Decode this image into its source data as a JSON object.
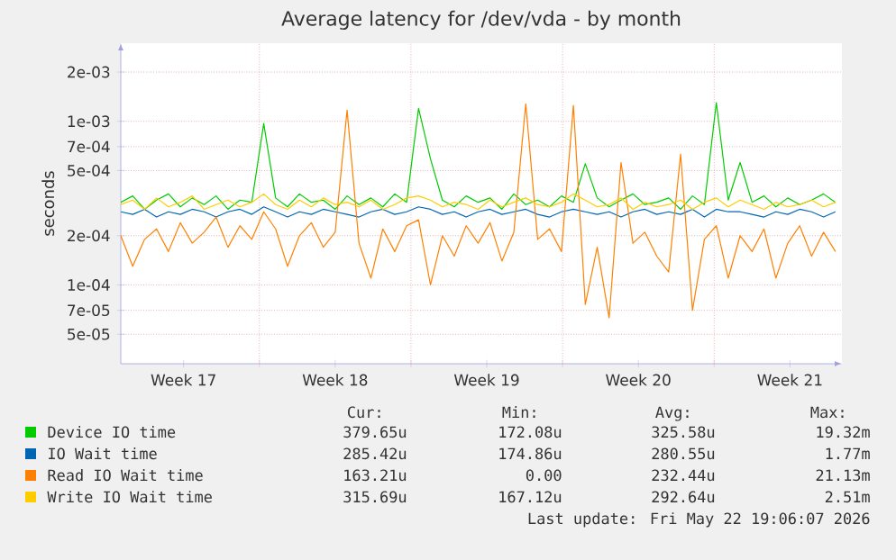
{
  "chart_data": {
    "type": "line",
    "title": "Average latency for /dev/vda - by month",
    "ylabel": "seconds",
    "log": "y",
    "grid": true,
    "legend": "bottom",
    "xlim": [
      "2026-04-20T14:24",
      "2026-05-23T21:36"
    ],
    "ylim": [
      3.3e-05,
      0.003
    ],
    "xticks": [
      {
        "value": "2026-04-23T12:00",
        "label": "Week 17"
      },
      {
        "value": "2026-04-30T12:00",
        "label": "Week 18"
      },
      {
        "value": "2026-05-07T12:00",
        "label": "Week 19"
      },
      {
        "value": "2026-05-14T12:00",
        "label": "Week 20"
      },
      {
        "value": "2026-05-21T12:00",
        "label": "Week 21"
      },
      {
        "value": "2026-04-27",
        "label": null
      },
      {
        "value": "2026-05-04",
        "label": null
      },
      {
        "value": "2026-05-11",
        "label": null
      },
      {
        "value": "2026-05-18",
        "label": null
      }
    ],
    "yticks": [
      {
        "value": 5e-05,
        "label": "5e-05"
      },
      {
        "value": 7e-05,
        "label": "7e-05"
      },
      {
        "value": 0.0001,
        "label": "1e-04"
      },
      {
        "value": 0.0002,
        "label": "2e-04"
      },
      {
        "value": 0.0005,
        "label": "5e-04"
      },
      {
        "value": 0.0007,
        "label": "7e-04"
      },
      {
        "value": 0.001,
        "label": "1e-03"
      },
      {
        "value": 0.002,
        "label": "2e-03"
      }
    ],
    "x": [
      "2026-04-20T14:24",
      "2026-04-21T03:36",
      "2026-04-21T16:48",
      "2026-04-22T06:00",
      "2026-04-22T19:12",
      "2026-04-23T08:24",
      "2026-04-23T21:36",
      "2026-04-24T10:48",
      "2026-04-25T00:00",
      "2026-04-25T13:12",
      "2026-04-26T02:24",
      "2026-04-26T15:36",
      "2026-04-27T04:48",
      "2026-04-27T18:00",
      "2026-04-28T07:12",
      "2026-04-28T20:24",
      "2026-04-29T09:36",
      "2026-04-29T22:48",
      "2026-04-30T12:00",
      "2026-05-01T01:12",
      "2026-05-01T14:24",
      "2026-05-02T03:36",
      "2026-05-02T16:48",
      "2026-05-03T06:00",
      "2026-05-03T19:12",
      "2026-05-04T08:24",
      "2026-05-04T21:36",
      "2026-05-05T10:48",
      "2026-05-06T00:00",
      "2026-05-06T13:12",
      "2026-05-07T02:24",
      "2026-05-07T15:36",
      "2026-05-08T04:48",
      "2026-05-08T18:00",
      "2026-05-09T07:12",
      "2026-05-09T20:24",
      "2026-05-10T09:36",
      "2026-05-10T22:48",
      "2026-05-11T12:00",
      "2026-05-12T01:12",
      "2026-05-12T14:24",
      "2026-05-13T03:36",
      "2026-05-13T16:48",
      "2026-05-14T06:00",
      "2026-05-14T19:12",
      "2026-05-15T08:24",
      "2026-05-15T21:36",
      "2026-05-16T10:48",
      "2026-05-17T00:00",
      "2026-05-17T13:12",
      "2026-05-18T02:24",
      "2026-05-18T15:36",
      "2026-05-19T04:48",
      "2026-05-19T18:00",
      "2026-05-20T07:12",
      "2026-05-20T20:24",
      "2026-05-21T09:36",
      "2026-05-21T22:48",
      "2026-05-22T12:00",
      "2026-05-23T01:12",
      "2026-05-23T14:24"
    ],
    "series": [
      {
        "name": "Device IO time",
        "color": "#00cc00",
        "values": [
          0.00032,
          0.00035,
          0.00029,
          0.00033,
          0.00036,
          0.0003,
          0.00034,
          0.00031,
          0.00035,
          0.00029,
          0.00033,
          0.00032,
          0.00097,
          0.00034,
          0.0003,
          0.00036,
          0.00032,
          0.00033,
          0.00029,
          0.00035,
          0.00031,
          0.00034,
          0.0003,
          0.00036,
          0.00032,
          0.0012,
          0.00059,
          0.00033,
          0.0003,
          0.00035,
          0.00032,
          0.00034,
          0.00029,
          0.00036,
          0.00031,
          0.00033,
          0.0003,
          0.00035,
          0.00032,
          0.00055,
          0.00034,
          0.0003,
          0.00033,
          0.00036,
          0.00031,
          0.00032,
          0.00034,
          0.00029,
          0.00035,
          0.00031,
          0.0013,
          0.00033,
          0.00056,
          0.00032,
          0.00035,
          0.0003,
          0.00034,
          0.00031,
          0.00033,
          0.00036,
          0.00032
        ]
      },
      {
        "name": "IO Wait time",
        "color": "#0066b3",
        "values": [
          0.00028,
          0.00027,
          0.00029,
          0.00026,
          0.00028,
          0.00027,
          0.00029,
          0.00028,
          0.00026,
          0.00028,
          0.00029,
          0.00027,
          0.0003,
          0.00028,
          0.00026,
          0.00028,
          0.00027,
          0.00029,
          0.00028,
          0.00027,
          0.00026,
          0.00028,
          0.00029,
          0.00027,
          0.00028,
          0.0003,
          0.00029,
          0.00027,
          0.00028,
          0.00026,
          0.00028,
          0.00029,
          0.00027,
          0.00028,
          0.00029,
          0.00027,
          0.00026,
          0.00028,
          0.00029,
          0.00028,
          0.00027,
          0.00028,
          0.00026,
          0.00028,
          0.00029,
          0.00027,
          0.00028,
          0.00027,
          0.00029,
          0.00026,
          0.00029,
          0.00028,
          0.00028,
          0.00027,
          0.00026,
          0.00028,
          0.00027,
          0.00029,
          0.00028,
          0.00026,
          0.00028
        ]
      },
      {
        "name": "Read IO Wait time",
        "color": "#ff8000",
        "values": [
          0.0002,
          0.00013,
          0.00019,
          0.00022,
          0.00016,
          0.00024,
          0.00018,
          0.00021,
          0.00026,
          0.00017,
          0.00023,
          0.00019,
          0.00028,
          0.00022,
          0.00013,
          0.0002,
          0.00024,
          0.00017,
          0.00021,
          0.00117,
          0.00018,
          0.00011,
          0.00022,
          0.00016,
          0.00023,
          0.00025,
          0.0001,
          0.0002,
          0.00015,
          0.00023,
          0.00018,
          0.00024,
          0.00014,
          0.00021,
          0.00128,
          0.00019,
          0.00022,
          0.00016,
          0.00125,
          7.6e-05,
          0.00017,
          6.3e-05,
          0.00056,
          0.00018,
          0.00021,
          0.00015,
          0.00012,
          0.00063,
          7e-05,
          0.00019,
          0.00023,
          0.00011,
          0.0002,
          0.00016,
          0.00022,
          0.00011,
          0.00018,
          0.00023,
          0.00015,
          0.00021,
          0.00016
        ]
      },
      {
        "name": "Write IO Wait time",
        "color": "#ffcc00",
        "values": [
          0.00031,
          0.00033,
          0.00029,
          0.00034,
          0.0003,
          0.00032,
          0.00035,
          0.00029,
          0.00031,
          0.00033,
          0.0003,
          0.00032,
          0.00036,
          0.00031,
          0.00029,
          0.00033,
          0.0003,
          0.00034,
          0.00031,
          0.00032,
          0.0003,
          0.00033,
          0.00029,
          0.00031,
          0.00034,
          0.00035,
          0.00033,
          0.0003,
          0.00032,
          0.00031,
          0.00029,
          0.00033,
          0.0003,
          0.00032,
          0.00034,
          0.00031,
          0.0003,
          0.00032,
          0.00036,
          0.00033,
          0.0003,
          0.00031,
          0.00034,
          0.00029,
          0.00032,
          0.0003,
          0.00031,
          0.00033,
          0.00029,
          0.00032,
          0.00034,
          0.0003,
          0.00033,
          0.00031,
          0.00029,
          0.00032,
          0.0003,
          0.00031,
          0.00033,
          0.0003,
          0.00032
        ]
      }
    ],
    "annotations": [
      "Cur:",
      "Min:",
      "Avg:",
      "Max:",
      "379.65u",
      "172.08u",
      "325.58u",
      "19.32m",
      "285.42u",
      "174.86u",
      "280.55u",
      "1.77m",
      "163.21u",
      "0.00",
      "232.44u",
      "21.13m",
      "315.69u",
      "167.12u",
      "292.64u",
      "2.51m",
      "Last update: Fri May 22 19:06:07 2026"
    ]
  }
}
